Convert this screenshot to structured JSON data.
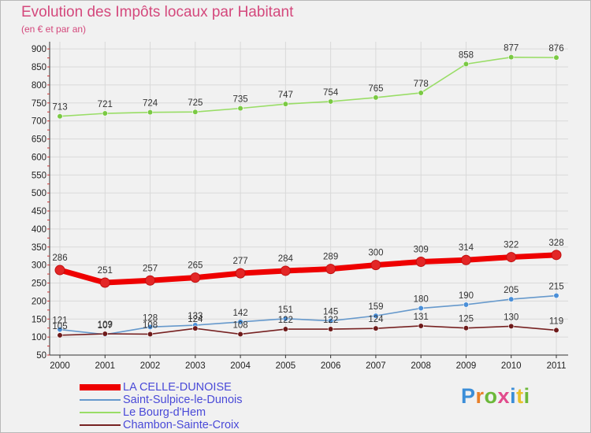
{
  "title": "Evolution des Impôts locaux par Habitant",
  "subtitle": "(en € et par an)",
  "brand": {
    "text": "Proxiti",
    "letter_colors": [
      "#3b8ed8",
      "#e8802a",
      "#6cb83a",
      "#e14b8c",
      "#3b8ed8",
      "#e8c12a",
      "#6cb83a"
    ]
  },
  "chart_data": {
    "type": "line",
    "title": "Evolution des Impôts locaux par Habitant",
    "subtitle": "(en € et par an)",
    "xlabel": "",
    "ylabel": "",
    "x": [
      "2000",
      "2001",
      "2002",
      "2003",
      "2004",
      "2005",
      "2006",
      "2007",
      "2008",
      "2009",
      "2010",
      "2011"
    ],
    "yticks": [
      "50",
      "100",
      "150",
      "200",
      "250",
      "300",
      "350",
      "400",
      "450",
      "500",
      "550",
      "600",
      "650",
      "700",
      "750",
      "800",
      "850",
      "900"
    ],
    "ylim": [
      50,
      920
    ],
    "grid": true,
    "series": [
      {
        "name": "LA CELLE-DUNOISE",
        "color": "#ee0000",
        "marker_color": "#e32626",
        "emphasis": true,
        "values": [
          286,
          251,
          257,
          265,
          277,
          284,
          289,
          300,
          309,
          314,
          322,
          328
        ],
        "labels": [
          "286",
          "251",
          "257",
          "265",
          "277",
          "284",
          "289",
          "300",
          "309",
          "314",
          "322",
          "328"
        ]
      },
      {
        "name": "Saint-Sulpice-le-Dunois",
        "color": "#6699cc",
        "marker_color": "#4a8fd8",
        "emphasis": false,
        "values": [
          121,
          107,
          128,
          133,
          142,
          151,
          145,
          159,
          180,
          190,
          205,
          215
        ],
        "labels": [
          "121",
          "107",
          "128",
          "133",
          "142",
          "151",
          "145",
          "159",
          "180",
          "190",
          "205",
          "215"
        ]
      },
      {
        "name": "Le Bourg-d'Hem",
        "color": "#99dd66",
        "marker_color": "#7ac943",
        "emphasis": false,
        "values": [
          713,
          721,
          724,
          725,
          735,
          747,
          754,
          765,
          778,
          858,
          877,
          876
        ],
        "labels": [
          "713",
          "721",
          "724",
          "725",
          "735",
          "747",
          "754",
          "765",
          "778",
          "858",
          "877",
          "876"
        ]
      },
      {
        "name": "Chambon-Sainte-Croix",
        "color": "#772222",
        "marker_color": "#6e1a1a",
        "emphasis": false,
        "values": [
          105,
          109,
          108,
          124,
          108,
          122,
          122,
          124,
          131,
          125,
          130,
          119
        ],
        "labels": [
          "105",
          "109",
          "108",
          "124",
          "108",
          "122",
          "122",
          "124",
          "131",
          "125",
          "130",
          "119"
        ]
      }
    ]
  }
}
